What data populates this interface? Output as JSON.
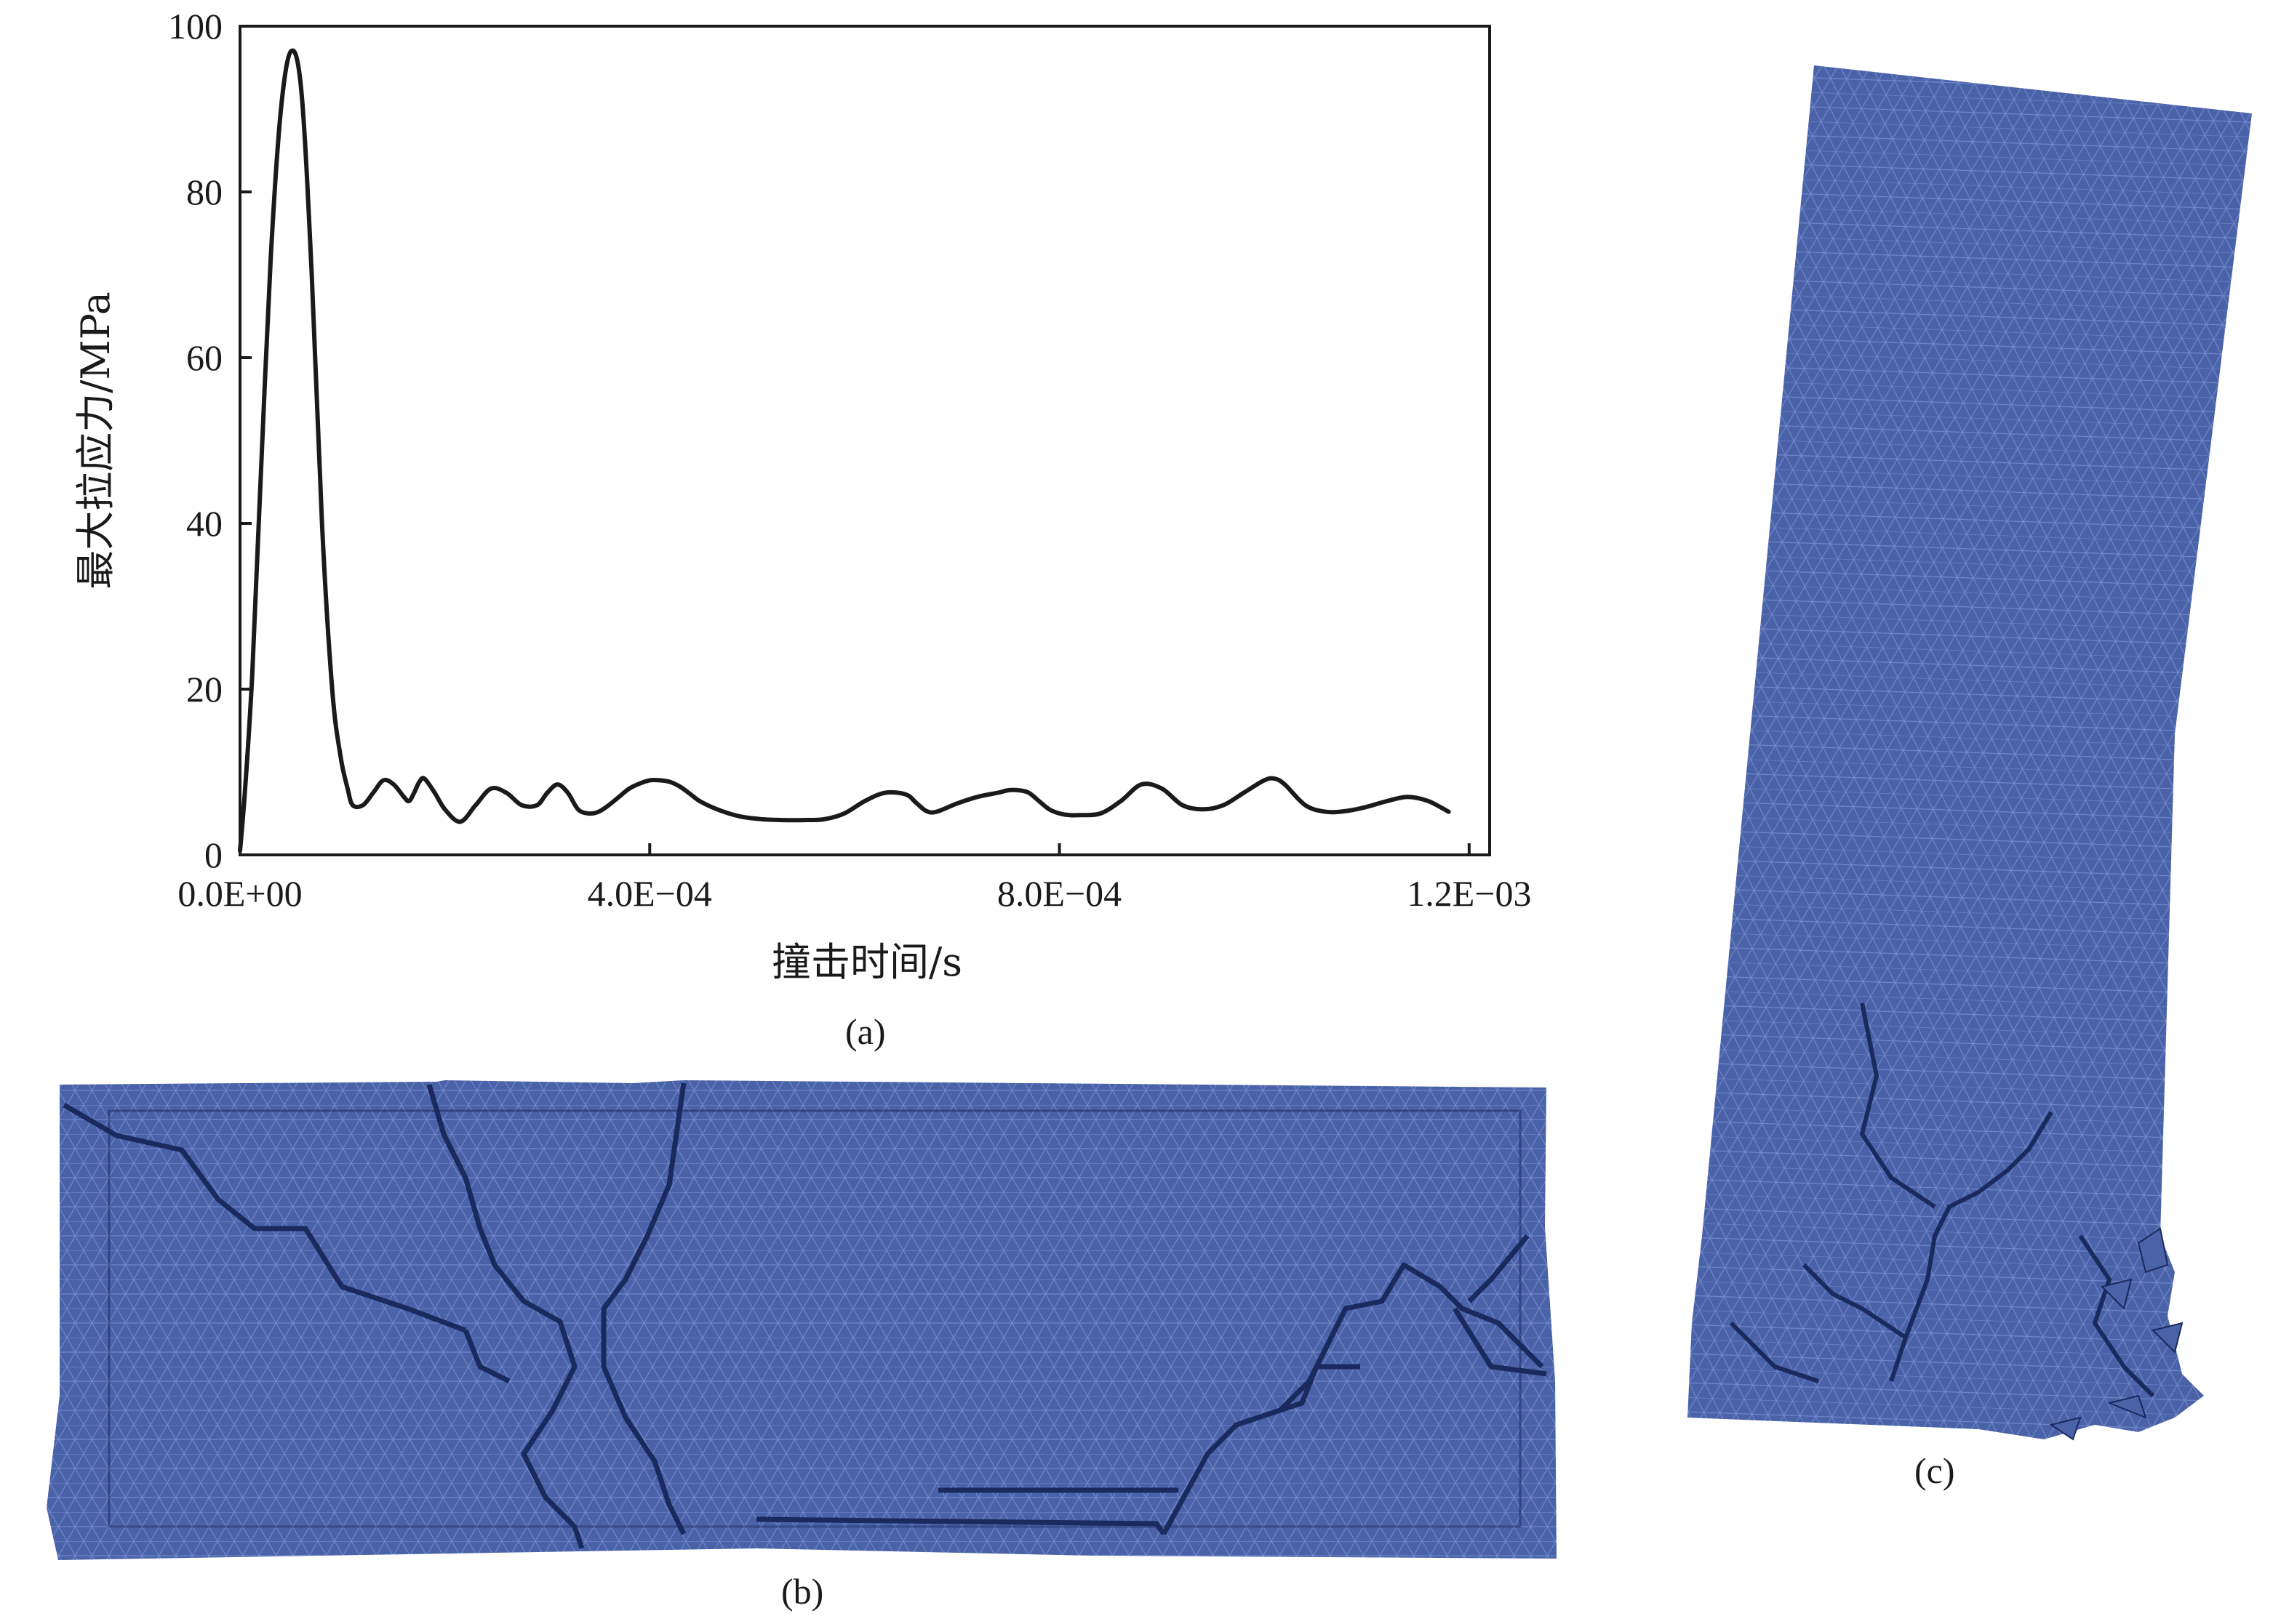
{
  "chart_data": {
    "type": "line",
    "xlabel": "撞击时间/s",
    "ylabel": "最大拉应力/MPa",
    "xlim": [
      0,
      0.00122
    ],
    "ylim": [
      0,
      100
    ],
    "x_ticks": [
      0,
      0.0004,
      0.0008,
      0.0012
    ],
    "x_tick_labels": [
      "0.0E+00",
      "4.0E−04",
      "8.0E−04",
      "1.2E−03"
    ],
    "y_ticks": [
      0,
      20,
      40,
      60,
      80,
      100
    ],
    "y_tick_labels": [
      "0",
      "20",
      "40",
      "60",
      "80",
      "100"
    ],
    "grid": false,
    "legend": "none",
    "color": "#1a1a1a",
    "series": [
      {
        "x": [
          0.0,
          5e-06,
          1.2e-05,
          2e-05,
          3e-05,
          4e-05,
          5e-05,
          6e-05,
          7e-05,
          8e-05,
          9e-05,
          9.8e-05,
          0.000105,
          0.00011,
          0.00012,
          0.00013,
          0.00014,
          0.00015,
          0.00016,
          0.000165,
          0.00017,
          0.000175,
          0.00018,
          0.00019,
          0.0002,
          0.000215,
          0.00023,
          0.000245,
          0.00026,
          0.000275,
          0.00029,
          0.0003,
          0.00031,
          0.00032,
          0.00033,
          0.00034,
          0.00035,
          0.00036,
          0.00037,
          0.00038,
          0.00039,
          0.0004,
          0.00041,
          0.00042,
          0.00043,
          0.00044,
          0.00045,
          0.00047,
          0.00049,
          0.00051,
          0.00053,
          0.00055,
          0.00057,
          0.00059,
          0.00061,
          0.00063,
          0.00065,
          0.00066,
          0.00067,
          0.00068,
          0.0007,
          0.00072,
          0.00074,
          0.00075,
          0.00076,
          0.00077,
          0.00078,
          0.00079,
          0.0008,
          0.00081,
          0.00082,
          0.00084,
          0.00086,
          0.00088,
          0.0009,
          0.00092,
          0.00094,
          0.00096,
          0.00098,
          0.001,
          0.00101,
          0.00102,
          0.00104,
          0.00106,
          0.00108,
          0.0011,
          0.00112,
          0.00114,
          0.00116,
          0.00118
        ],
        "y": [
          0.5,
          8,
          22,
          45,
          72,
          90,
          97,
          92,
          70,
          40,
          20,
          12,
          8,
          6,
          6,
          7.5,
          9,
          8.5,
          7,
          6.5,
          7.5,
          8.8,
          9.2,
          7.5,
          5.5,
          4,
          6,
          8,
          7.5,
          6,
          6,
          7.5,
          8.5,
          7.5,
          5.5,
          5,
          5.2,
          6,
          7,
          8,
          8.6,
          9,
          9,
          8.8,
          8.2,
          7.3,
          6.4,
          5.3,
          4.6,
          4.3,
          4.2,
          4.2,
          4.3,
          5,
          6.5,
          7.5,
          7.3,
          6.3,
          5.3,
          5.2,
          6.2,
          7,
          7.5,
          7.8,
          7.8,
          7.5,
          6.5,
          5.5,
          5,
          4.8,
          4.8,
          5,
          6.5,
          8.5,
          8,
          6,
          5.5,
          6,
          7.5,
          9,
          9.2,
          8.5,
          6,
          5.2,
          5.3,
          5.8,
          6.5,
          7,
          6.5,
          5.2
        ]
      }
    ]
  },
  "panels": {
    "a_label": "(a)",
    "b_label": "(b)",
    "c_label": "(c)"
  },
  "colors": {
    "mesh_fill": "#4a62a8",
    "mesh_line": "#6f86c8",
    "crack": "#1b2a5e"
  }
}
